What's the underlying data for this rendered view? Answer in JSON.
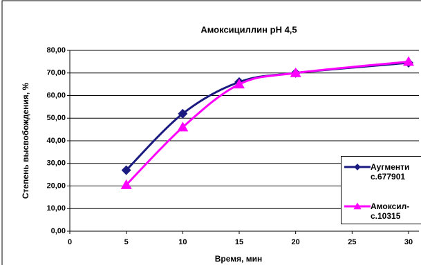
{
  "chart_data": {
    "type": "line",
    "title": "Амоксициллин pH 4,5",
    "x_label": "Время, мин",
    "y_label": "Степень высвобождения, %",
    "xlim": [
      0,
      30
    ],
    "xticks": [
      0,
      5,
      10,
      15,
      20,
      25,
      30
    ],
    "ylim": [
      0,
      80
    ],
    "yticks": [
      {
        "value": 0,
        "label": "0,00"
      },
      {
        "value": 10,
        "label": "10,00"
      },
      {
        "value": 20,
        "label": "20,00"
      },
      {
        "value": 30,
        "label": "30,00"
      },
      {
        "value": 40,
        "label": "40,00"
      },
      {
        "value": 50,
        "label": "50,00"
      },
      {
        "value": 60,
        "label": "60,00"
      },
      {
        "value": 70,
        "label": "70,00"
      },
      {
        "value": 80,
        "label": "80,00"
      }
    ],
    "grid": true,
    "legend": "right",
    "series": [
      {
        "name": "Аугменти с.677901",
        "color": "#1a1a80",
        "marker": "diamond",
        "x": [
          5,
          10,
          15,
          20,
          30
        ],
        "values": [
          27,
          52,
          66,
          70,
          74.5
        ]
      },
      {
        "name": "Амоксил-с.10315",
        "color": "#ff00ff",
        "marker": "triangle",
        "x": [
          5,
          10,
          15,
          20,
          30
        ],
        "values": [
          20.5,
          46,
          65,
          70,
          75
        ]
      }
    ]
  }
}
